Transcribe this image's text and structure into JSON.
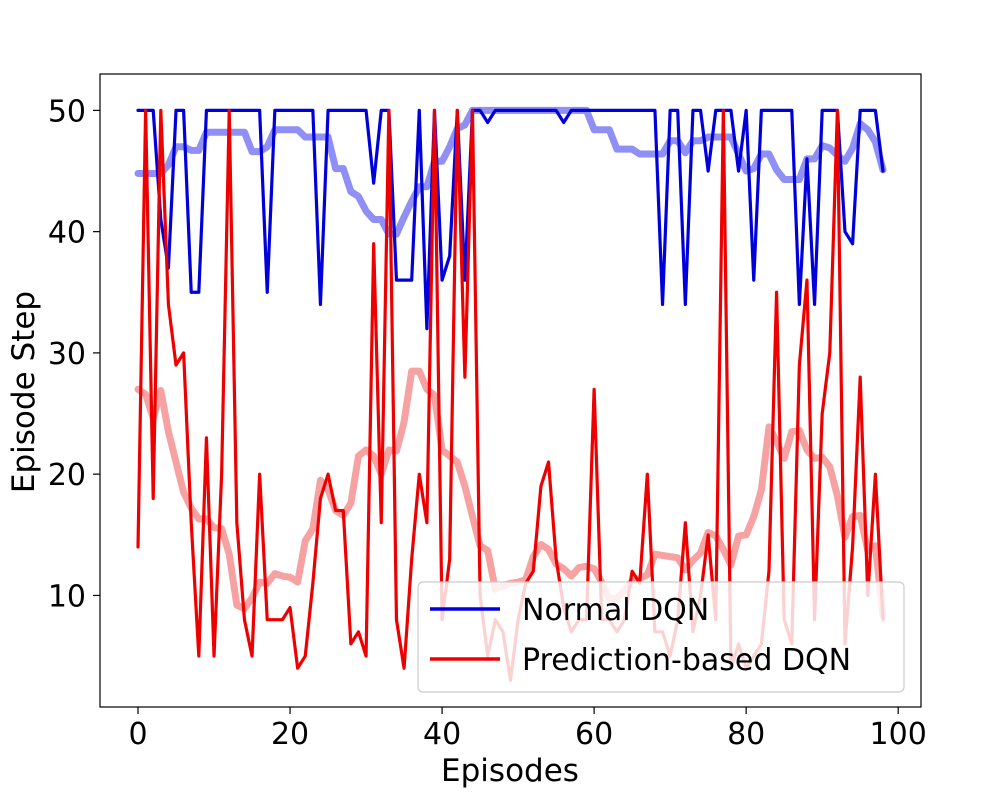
{
  "chart_data": {
    "type": "line",
    "xlabel": "Episodes",
    "ylabel": "Episode Step",
    "xlim": [
      -5,
      103
    ],
    "ylim": [
      0.8,
      53
    ],
    "xticks": [
      0,
      20,
      40,
      60,
      80,
      100
    ],
    "yticks": [
      10,
      20,
      30,
      40,
      50
    ],
    "xtick_labels": [
      "0",
      "20",
      "40",
      "60",
      "80",
      "100"
    ],
    "ytick_labels": [
      "10",
      "20",
      "30",
      "40",
      "50"
    ],
    "grid": false,
    "legend_position": "lower-right",
    "legend": [
      "Normal DQN",
      "Prediction-based DQN"
    ],
    "colors": {
      "normal": "#0000dd",
      "normal_smooth": "#8f8ff5",
      "prediction": "#ee0000",
      "prediction_smooth": "#f7a2a2"
    },
    "series": [
      {
        "name": "Normal DQN",
        "color": "#0000dd",
        "x": [
          0,
          1,
          2,
          3,
          4,
          5,
          6,
          7,
          8,
          9,
          10,
          11,
          12,
          13,
          14,
          15,
          16,
          17,
          18,
          19,
          20,
          21,
          22,
          23,
          24,
          25,
          26,
          27,
          28,
          29,
          30,
          31,
          32,
          33,
          34,
          35,
          36,
          37,
          38,
          39,
          40,
          41,
          42,
          43,
          44,
          45,
          46,
          47,
          48,
          49,
          50,
          51,
          52,
          53,
          54,
          55,
          56,
          57,
          58,
          59,
          60,
          61,
          62,
          63,
          64,
          65,
          66,
          67,
          68,
          69,
          70,
          71,
          72,
          73,
          74,
          75,
          76,
          77,
          78,
          79,
          80,
          81,
          82,
          83,
          84,
          85,
          86,
          87,
          88,
          89,
          90,
          91,
          92,
          93,
          94,
          95,
          96,
          97,
          98
        ],
        "y": [
          50,
          50,
          50,
          41,
          37,
          50,
          50,
          35,
          35,
          50,
          50,
          50,
          50,
          50,
          50,
          50,
          50,
          35,
          50,
          50,
          50,
          50,
          50,
          50,
          34,
          50,
          50,
          50,
          50,
          50,
          50,
          44,
          50,
          50,
          36,
          36,
          36,
          50,
          32,
          50,
          36,
          38,
          50,
          36,
          50,
          50,
          49,
          50,
          50,
          50,
          50,
          50,
          50,
          50,
          50,
          50,
          49,
          50,
          50,
          50,
          50,
          50,
          50,
          50,
          50,
          50,
          50,
          50,
          50,
          34,
          50,
          50,
          34,
          50,
          50,
          45,
          50,
          50,
          50,
          45,
          50,
          36,
          50,
          50,
          50,
          50,
          50,
          34,
          46,
          34,
          50,
          50,
          50,
          40,
          39,
          50,
          50,
          50,
          45
        ]
      },
      {
        "name": "",
        "color": "#8f8ff5",
        "x": [
          0,
          1,
          2,
          3,
          4,
          5,
          6,
          7,
          8,
          9,
          10,
          11,
          12,
          13,
          14,
          15,
          16,
          17,
          18,
          19,
          20,
          21,
          22,
          23,
          24,
          25,
          26,
          27,
          28,
          29,
          30,
          31,
          32,
          33,
          34,
          35,
          36,
          37,
          38,
          39,
          40,
          41,
          42,
          43,
          44,
          45,
          46,
          47,
          48,
          49,
          50,
          51,
          52,
          53,
          54,
          55,
          56,
          57,
          58,
          59,
          60,
          61,
          62,
          63,
          64,
          65,
          66,
          67,
          68,
          69,
          70,
          71,
          72,
          73,
          74,
          75,
          76,
          77,
          78,
          79,
          80,
          81,
          82,
          83,
          84,
          85,
          86,
          87,
          88,
          89,
          90,
          91,
          92,
          93,
          94,
          95,
          96,
          97,
          98
        ],
        "y": [
          44.8,
          44.8,
          44.8,
          44.8,
          45.5,
          47,
          47,
          46.7,
          46.7,
          48.2,
          48.2,
          48.2,
          48.2,
          48.2,
          48.2,
          46.6,
          46.6,
          47,
          48.4,
          48.4,
          48.4,
          48.4,
          47.8,
          47.8,
          47.8,
          47.8,
          45.2,
          45.2,
          43.3,
          42.9,
          41.7,
          41,
          41,
          39.8,
          39.8,
          41.2,
          42.5,
          43.7,
          43.7,
          45.8,
          45.8,
          47,
          48.5,
          48.8,
          50,
          50,
          50,
          50,
          50,
          50,
          50,
          50,
          50,
          50,
          50,
          50,
          50,
          50,
          50,
          50,
          48.4,
          48.4,
          48.4,
          46.8,
          46.8,
          46.8,
          46.4,
          46.4,
          46.4,
          46.4,
          47.5,
          47.5,
          46.5,
          47.5,
          47.5,
          47.8,
          47.8,
          47.8,
          47.8,
          46.4,
          45,
          45.2,
          46.4,
          46.4,
          45.1,
          44.3,
          44.3,
          44.3,
          46,
          46,
          47.1,
          46.9,
          46.3,
          45.8,
          46.9,
          48.9,
          48.4,
          47.4,
          45.1
        ]
      },
      {
        "name": "Prediction-based DQN",
        "color": "#ee0000",
        "x": [
          0,
          1,
          2,
          3,
          4,
          5,
          6,
          7,
          8,
          9,
          10,
          11,
          12,
          13,
          14,
          15,
          16,
          17,
          18,
          19,
          20,
          21,
          22,
          23,
          24,
          25,
          26,
          27,
          28,
          29,
          30,
          31,
          32,
          33,
          34,
          35,
          36,
          37,
          38,
          39,
          40,
          41,
          42,
          43,
          44,
          45,
          46,
          47,
          48,
          49,
          50,
          51,
          52,
          53,
          54,
          55,
          56,
          57,
          58,
          59,
          60,
          61,
          62,
          63,
          64,
          65,
          66,
          67,
          68,
          69,
          70,
          71,
          72,
          73,
          74,
          75,
          76,
          77,
          78,
          79,
          80,
          81,
          82,
          83,
          84,
          85,
          86,
          87,
          88,
          89,
          90,
          91,
          92,
          93,
          94,
          95,
          96,
          97,
          98
        ],
        "y": [
          14,
          50,
          18,
          50,
          34,
          29,
          30,
          16,
          5,
          23,
          5,
          20,
          50,
          16,
          8,
          5,
          20,
          8,
          8,
          8,
          9,
          4,
          5,
          11,
          18,
          20,
          17,
          17,
          6,
          7,
          5,
          39,
          16,
          50,
          8,
          4,
          13,
          20,
          16,
          50,
          8,
          13,
          50,
          28,
          50,
          10,
          5,
          8,
          7,
          3,
          8,
          11,
          12,
          19,
          21,
          13,
          9,
          7,
          8,
          8,
          27,
          8,
          8,
          7,
          8,
          12,
          11,
          20,
          7,
          7,
          5,
          8,
          16,
          7,
          10,
          15,
          8,
          50,
          4,
          6,
          4,
          5,
          6,
          12,
          35,
          8,
          6,
          29,
          36,
          8,
          25,
          30,
          50,
          6,
          14,
          28,
          10,
          20,
          8
        ]
      },
      {
        "name": "",
        "color": "#f7a2a2",
        "x": [
          0,
          1,
          2,
          3,
          4,
          5,
          6,
          7,
          8,
          9,
          10,
          11,
          12,
          13,
          14,
          15,
          16,
          17,
          18,
          19,
          20,
          21,
          22,
          23,
          24,
          25,
          26,
          27,
          28,
          29,
          30,
          31,
          32,
          33,
          34,
          35,
          36,
          37,
          38,
          39,
          40,
          41,
          42,
          43,
          44,
          45,
          46,
          47,
          48,
          49,
          50,
          51,
          52,
          53,
          54,
          55,
          56,
          57,
          58,
          59,
          60,
          61,
          62,
          63,
          64,
          65,
          66,
          67,
          68,
          69,
          70,
          71,
          72,
          73,
          74,
          75,
          76,
          77,
          78,
          79,
          80,
          81,
          82,
          83,
          84,
          85,
          86,
          87,
          88,
          89,
          90,
          91,
          92,
          93,
          94,
          95,
          96,
          97,
          98
        ],
        "y": [
          27,
          26.6,
          24.6,
          26.9,
          23.5,
          21,
          18.5,
          17.2,
          16.3,
          16.3,
          15.6,
          15.5,
          13.4,
          9.2,
          8.9,
          9.8,
          11.1,
          11,
          11.8,
          11.6,
          11.5,
          11.1,
          14.5,
          15.5,
          19.5,
          18.7,
          17,
          16.6,
          17.6,
          21.5,
          22,
          21.5,
          20,
          22,
          21.9,
          24.3,
          28.5,
          28.5,
          27,
          26.5,
          22,
          21.5,
          21,
          19,
          16.5,
          14.1,
          13.7,
          10.5,
          10.8,
          11,
          11.1,
          11.3,
          13.2,
          14.2,
          13.8,
          12.6,
          12.2,
          11.6,
          12.3,
          12.4,
          12.2,
          11.1,
          9.7,
          9.8,
          10.4,
          11.2,
          11.4,
          11.7,
          13.4,
          13.3,
          13.2,
          13.1,
          12.1,
          12.9,
          13.5,
          15.2,
          14.9,
          13.8,
          12.5,
          14.9,
          15,
          16.5,
          18.7,
          23.9,
          22.7,
          21.3,
          23.5,
          23.6,
          22,
          21.3,
          21.4,
          20.6,
          18.2,
          14.8,
          16.5,
          16.6,
          13.7,
          14.1,
          8.3
        ]
      }
    ]
  }
}
